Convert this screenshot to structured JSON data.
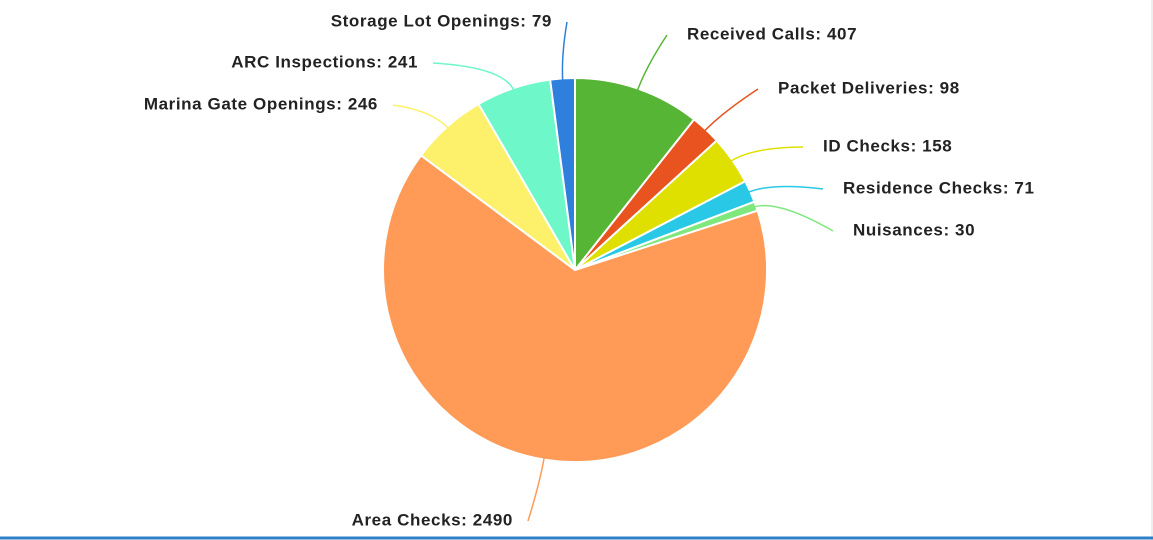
{
  "chart_data": {
    "type": "pie",
    "values": [
      407,
      98,
      158,
      71,
      30,
      2490,
      246,
      241,
      79
    ],
    "value_labels": [
      "Received Calls: 407",
      "Packet Deliveries: 98",
      "ID Checks: 158",
      "Residence Checks: 71",
      "Nuisances: 30",
      "Area Checks: 2490",
      "Marina Gate Openings: 246",
      "ARC Inspections: 241",
      "Storage Lot Openings: 79"
    ],
    "colors": [
      "#56b535",
      "#e8531f",
      "#dfe000",
      "#29c8e6",
      "#7ee87e",
      "#ff9a57",
      "#fdf06a",
      "#6ef7c8",
      "#2f80dc"
    ]
  }
}
